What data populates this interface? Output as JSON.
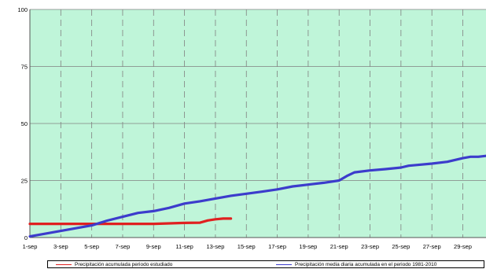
{
  "chart_data": {
    "type": "line",
    "title": "",
    "xlabel": "",
    "ylabel": "",
    "ylim": [
      0,
      100
    ],
    "xlim": [
      1,
      30.5
    ],
    "y_ticks": [
      0,
      25,
      50,
      75,
      100
    ],
    "y_tick_labels": [
      "0",
      "25",
      "50",
      "75",
      "100"
    ],
    "x_ticks": [
      1,
      3,
      5,
      7,
      9,
      11,
      13,
      15,
      17,
      19,
      21,
      23,
      25,
      27,
      29
    ],
    "x_tick_labels": [
      "1-sep",
      "3-sep",
      "5-sep",
      "7-sep",
      "9-sep",
      "11-sep",
      "13-sep",
      "15-sep",
      "17-sep",
      "19-sep",
      "21-sep",
      "23-sep",
      "25-sep",
      "27-sep",
      "29-sep"
    ],
    "grid": true,
    "background_color": "#bff5d9",
    "legend_position": "bottom",
    "series": [
      {
        "name": "Precipitación acumulada periodo estudiado",
        "color": "#e02020",
        "x": [
          1,
          2,
          3,
          4,
          5,
          6,
          7,
          8,
          9,
          10,
          11,
          12,
          12.5,
          13,
          13.5,
          14
        ],
        "values": [
          6,
          6,
          6,
          6,
          6,
          6,
          6,
          6,
          6,
          6.2,
          6.4,
          6.5,
          7.5,
          8,
          8.3,
          8.3
        ]
      },
      {
        "name": "Precipitación media diaria acumulada en el periodo 1981-2010",
        "color": "#3c3ccc",
        "x": [
          1,
          2,
          3,
          4,
          5,
          6,
          7,
          8,
          9,
          10,
          11,
          12,
          13,
          14,
          15,
          16,
          17,
          18,
          19,
          20,
          21,
          21.5,
          22,
          23,
          24,
          25,
          25.5,
          26,
          27,
          28,
          29,
          29.5,
          30,
          30.5
        ],
        "values": [
          0.5,
          1.7,
          2.9,
          4.1,
          5.3,
          7.4,
          9.1,
          10.8,
          11.6,
          13,
          14.9,
          15.9,
          17.1,
          18.3,
          19.2,
          20.1,
          21.1,
          22.4,
          23.2,
          24,
          25,
          27,
          28.6,
          29.4,
          30,
          30.7,
          31.5,
          31.8,
          32.4,
          33.2,
          34.8,
          35.4,
          35.4,
          35.8
        ]
      }
    ]
  }
}
